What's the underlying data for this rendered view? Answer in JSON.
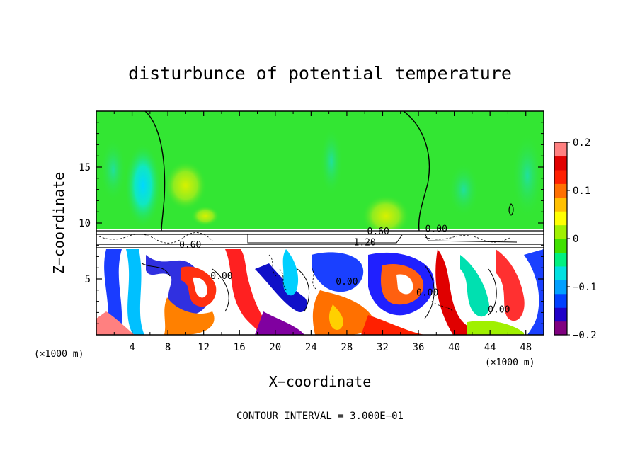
{
  "chart_data": {
    "type": "heatmap",
    "title": "disturbunce of potential temperature",
    "xlabel": "X−coordinate",
    "ylabel": "Z−coordinate",
    "x_unit": "(×1000 m)",
    "x_unit_right": "(×1000 m)",
    "xlim": [
      0,
      50
    ],
    "ylim": [
      0,
      20
    ],
    "x_ticks": [
      "4",
      "8",
      "12",
      "16",
      "20",
      "24",
      "28",
      "32",
      "36",
      "40",
      "44",
      "48"
    ],
    "y_ticks": [
      "5",
      "10",
      "15"
    ],
    "contour_interval_label": "CONTOUR INTERVAL = 3.000E−01",
    "contour_labels": [
      {
        "text": "0.60",
        "x": 10.5,
        "z": 7.8
      },
      {
        "text": "0.60",
        "x": 31.5,
        "z": 9.0
      },
      {
        "text": "1.20",
        "x": 30.0,
        "z": 8.0
      },
      {
        "text": "0.00",
        "x": 38.0,
        "z": 9.2
      },
      {
        "text": "0.00",
        "x": 14.0,
        "z": 5.0
      },
      {
        "text": "0.00",
        "x": 28.0,
        "z": 4.5
      },
      {
        "text": "0.00",
        "x": 37.0,
        "z": 3.5
      },
      {
        "text": "0.00",
        "x": 45.0,
        "z": 2.0
      }
    ],
    "colorbar": {
      "min": -0.2,
      "max": 0.2,
      "tick_labels": [
        "0.2",
        "0.1",
        "0",
        "−0.1",
        "−0.2"
      ],
      "tick_values": [
        0.2,
        0.1,
        0,
        -0.1,
        -0.2
      ],
      "colors": [
        "#800080",
        "#1f00c8",
        "#0040ff",
        "#00a0ff",
        "#00e0e0",
        "#00f080",
        "#40e000",
        "#a0f000",
        "#ffff00",
        "#ffc000",
        "#ff7000",
        "#ff2000",
        "#e00000",
        "#ff8080"
      ]
    },
    "regions": {
      "upper_background": "#33e633",
      "interface_band": "#ffffff",
      "lower_turbulent": "mixed"
    }
  }
}
